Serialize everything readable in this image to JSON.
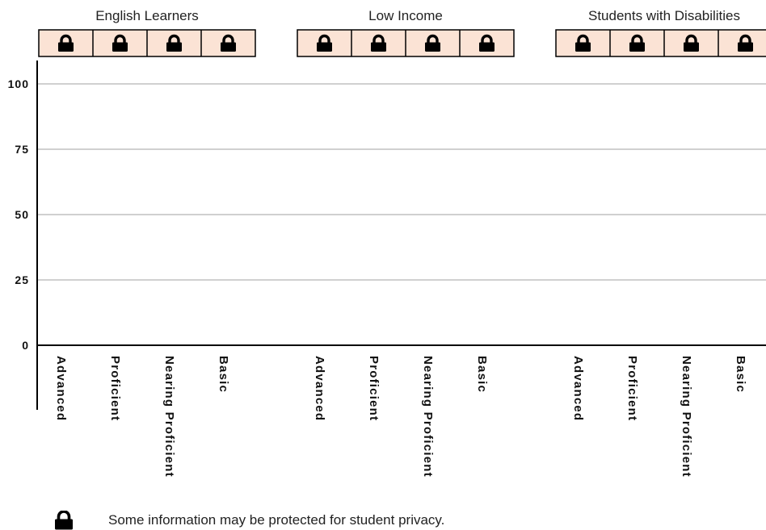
{
  "chart_data": {
    "type": "bar",
    "groups": [
      {
        "name": "English Learners",
        "categories": [
          "Advanced",
          "Proficient",
          "Nearing Proficient",
          "Basic"
        ],
        "protected": [
          true,
          true,
          true,
          true
        ]
      },
      {
        "name": "Low Income",
        "categories": [
          "Advanced",
          "Proficient",
          "Nearing Proficient",
          "Basic"
        ],
        "protected": [
          true,
          true,
          true,
          true
        ]
      },
      {
        "name": "Students with Disabilities",
        "categories": [
          "Advanced",
          "Proficient",
          "Nearing Proficient",
          "Basic"
        ],
        "protected": [
          true,
          true,
          true,
          true
        ]
      }
    ],
    "values": [],
    "ylim": [
      0,
      100
    ],
    "yticks": [
      "0",
      "25",
      "50",
      "75",
      "100"
    ],
    "grid": true,
    "footnote": "Some information may be protected for student privacy.",
    "colors": {
      "lock_cell_fill": "#fbe3d5",
      "lock_icon": "#000000",
      "gridline": "#a0a0a0",
      "axis": "#000000"
    },
    "icons": {
      "protected": "lock-icon"
    }
  }
}
